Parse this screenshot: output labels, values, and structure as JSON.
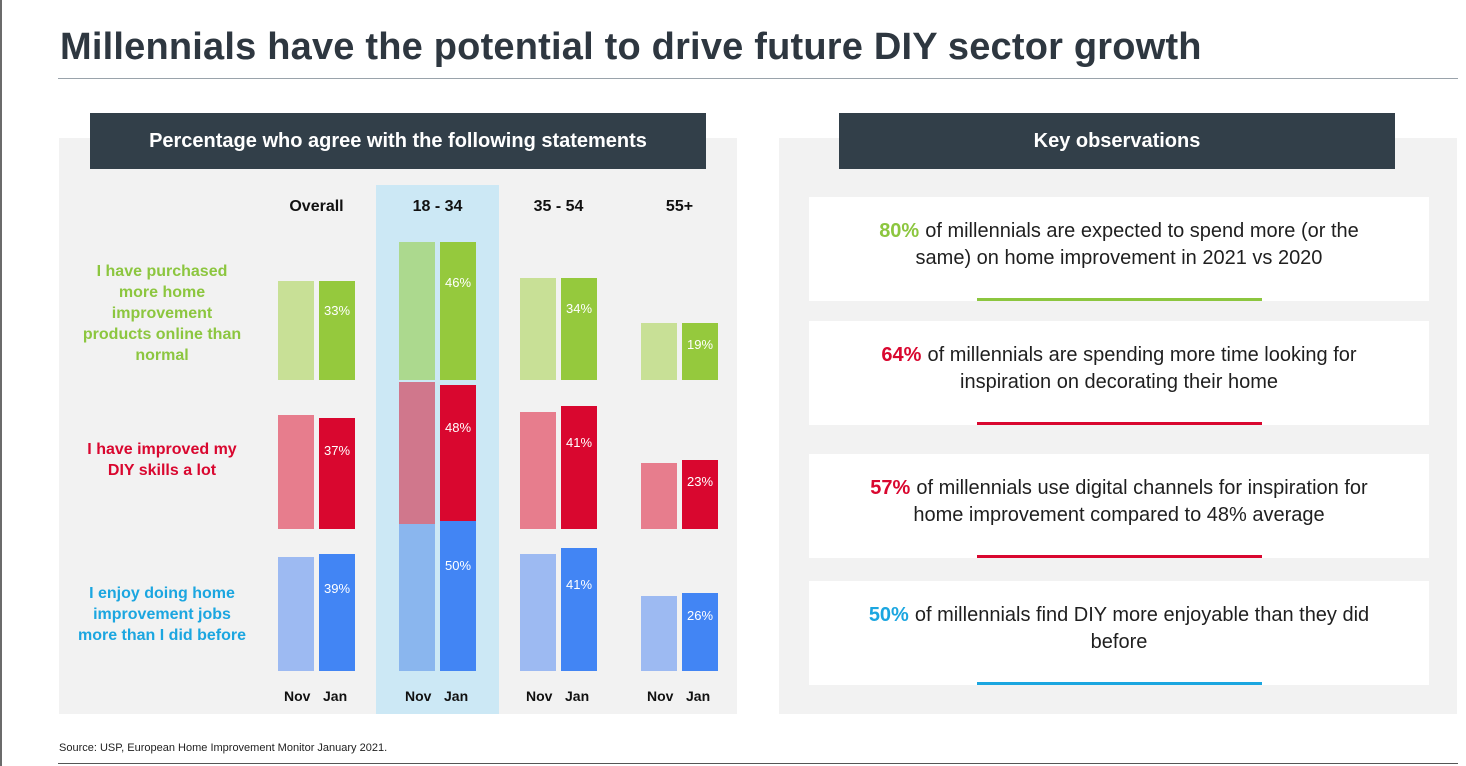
{
  "title": "Millennials have the potential to drive future DIY sector growth",
  "left_header": "Percentage who agree with the following statements",
  "right_header": "Key observations",
  "source": "Source: USP, European Home Improvement Monitor January 2021.",
  "chart_data": {
    "type": "bar",
    "title": "Percentage who agree with the following statements",
    "groups": [
      "Overall",
      "18 - 34",
      "35 - 54",
      "55+"
    ],
    "periods": [
      "Nov",
      "Jan"
    ],
    "highlighted_group": "18 - 34",
    "unit": "%",
    "statements": [
      {
        "label": "I have purchased more home improvement products online than normal",
        "color_nov": "#c8e096",
        "color_nov_highlight": "#acd98e",
        "color_jan": "#95c93d",
        "nov_values": [
          33,
          46,
          34,
          19
        ],
        "jan_values": [
          33,
          46,
          34,
          19
        ],
        "jan_labels": [
          "33%",
          "46%",
          "34%",
          "19%"
        ]
      },
      {
        "label": "I have improved my DIY skills a lot",
        "color_nov": "#e77d8d",
        "color_nov_highlight": "#d0778c",
        "color_jan": "#d9072f",
        "nov_values": [
          38,
          49,
          39,
          22
        ],
        "jan_values": [
          37,
          48,
          41,
          23
        ],
        "jan_labels": [
          "37%",
          "48%",
          "41%",
          "23%"
        ]
      },
      {
        "label": "I enjoy doing home improvement jobs more than I did before",
        "color_nov": "#9dbaf2",
        "color_nov_highlight": "#8ab6ee",
        "color_jan": "#4285f4",
        "nov_values": [
          38,
          49,
          39,
          25
        ],
        "jan_values": [
          39,
          50,
          41,
          26
        ],
        "jan_labels": [
          "39%",
          "50%",
          "41%",
          "26%"
        ]
      }
    ],
    "row_label_colors": [
      "#8cc63f",
      "#d9072f",
      "#1ba6e0"
    ],
    "ylim": [
      0,
      55
    ]
  },
  "observations": [
    {
      "pct": "80%",
      "text": "of millennials are expected to spend more (or the same) on home improvement in 2021 vs 2020",
      "color": "#8cc63f"
    },
    {
      "pct": "64%",
      "text": "of millennials are spending more time looking for inspiration on decorating their home",
      "color": "#d9072f"
    },
    {
      "pct": "57%",
      "text": "of millennials use digital channels for inspiration for home improvement compared to 48% average",
      "color": "#d9072f"
    },
    {
      "pct": "50%",
      "text": "of millennials find DIY more enjoyable than they did before",
      "color": "#1ba6e0"
    }
  ]
}
